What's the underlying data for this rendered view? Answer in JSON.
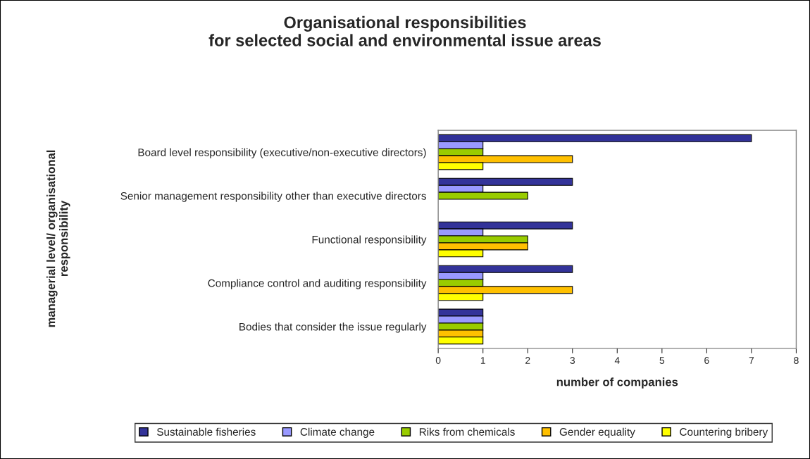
{
  "chart_data": {
    "type": "bar",
    "orientation": "horizontal",
    "title": "Organisational responsibilities\nfor selected social and environmental issue areas",
    "xlabel": "number of companies",
    "ylabel": "managerial level/ organisational\nresponsibility",
    "categories": [
      "Board level responsibility (executive/non-executive directors)",
      "Senior management responsibility other than executive directors",
      "Functional responsibility",
      "Compliance control and auditing responsibility",
      "Bodies that consider the issue regularly"
    ],
    "series": [
      {
        "name": "Sustainable fisheries",
        "color": "#333399",
        "values": [
          7,
          3,
          3,
          3,
          1
        ]
      },
      {
        "name": "Climate change",
        "color": "#9999ff",
        "values": [
          1,
          1,
          1,
          1,
          1
        ]
      },
      {
        "name": "Riks from chemicals",
        "color": "#99cc00",
        "values": [
          1,
          2,
          2,
          1,
          1
        ]
      },
      {
        "name": "Gender equality",
        "color": "#ffc000",
        "values": [
          3,
          null,
          2,
          3,
          1
        ]
      },
      {
        "name": "Countering bribery",
        "color": "#ffff00",
        "values": [
          1,
          null,
          1,
          1,
          1
        ]
      }
    ],
    "xlim": [
      0,
      8
    ],
    "xticks": [
      0,
      1,
      2,
      3,
      4,
      5,
      6,
      7,
      8
    ],
    "grid": false,
    "legend": "bottom"
  }
}
